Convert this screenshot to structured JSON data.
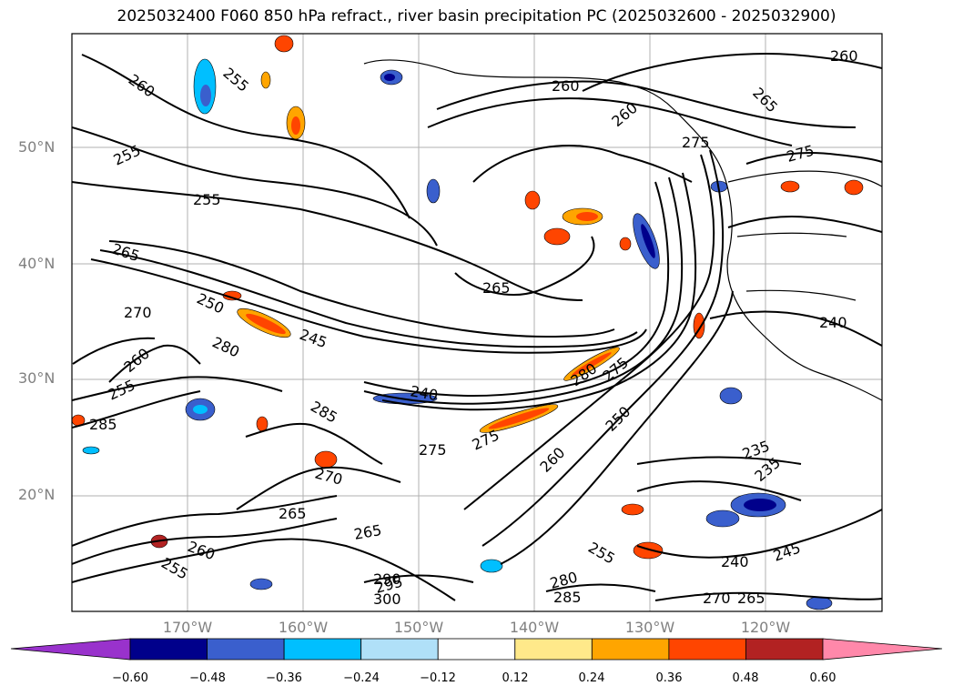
{
  "title": "2025032400 F060 850 hPa refract., river basin precipitation PC (2025032600 - 2025032900)",
  "latitude_labels": [
    "50°N",
    "40°N",
    "30°N",
    "20°N"
  ],
  "longitude_labels": [
    "170°W",
    "160°W",
    "150°W",
    "140°W",
    "130°W",
    "120°W"
  ],
  "contour_labels": [
    "260",
    "255",
    "255",
    "255",
    "265",
    "260",
    "270",
    "280",
    "250",
    "245",
    "265",
    "260",
    "255",
    "285",
    "285",
    "240",
    "280",
    "275",
    "275",
    "250",
    "260",
    "235",
    "235",
    "255",
    "240",
    "245",
    "275",
    "260",
    "270",
    "265",
    "265",
    "265",
    "260",
    "275",
    "275",
    "240",
    "295",
    "300",
    "290",
    "280",
    "285",
    "270",
    "255",
    "260",
    "265"
  ],
  "colorbar": {
    "ticks": [
      "−0.60",
      "−0.48",
      "−0.36",
      "−0.24",
      "−0.12",
      "0.12",
      "0.24",
      "0.36",
      "0.48",
      "0.60"
    ],
    "colors": [
      "#9932cc",
      "#00008b",
      "#3a5fcd",
      "#00bfff",
      "#b0e0f8",
      "#ffffff",
      "#ffe98a",
      "#ffa500",
      "#ff4500",
      "#b22222",
      "#ff88aa"
    ],
    "extend_low_color": "#9932cc",
    "extend_high_color": "#ff88aa"
  }
}
